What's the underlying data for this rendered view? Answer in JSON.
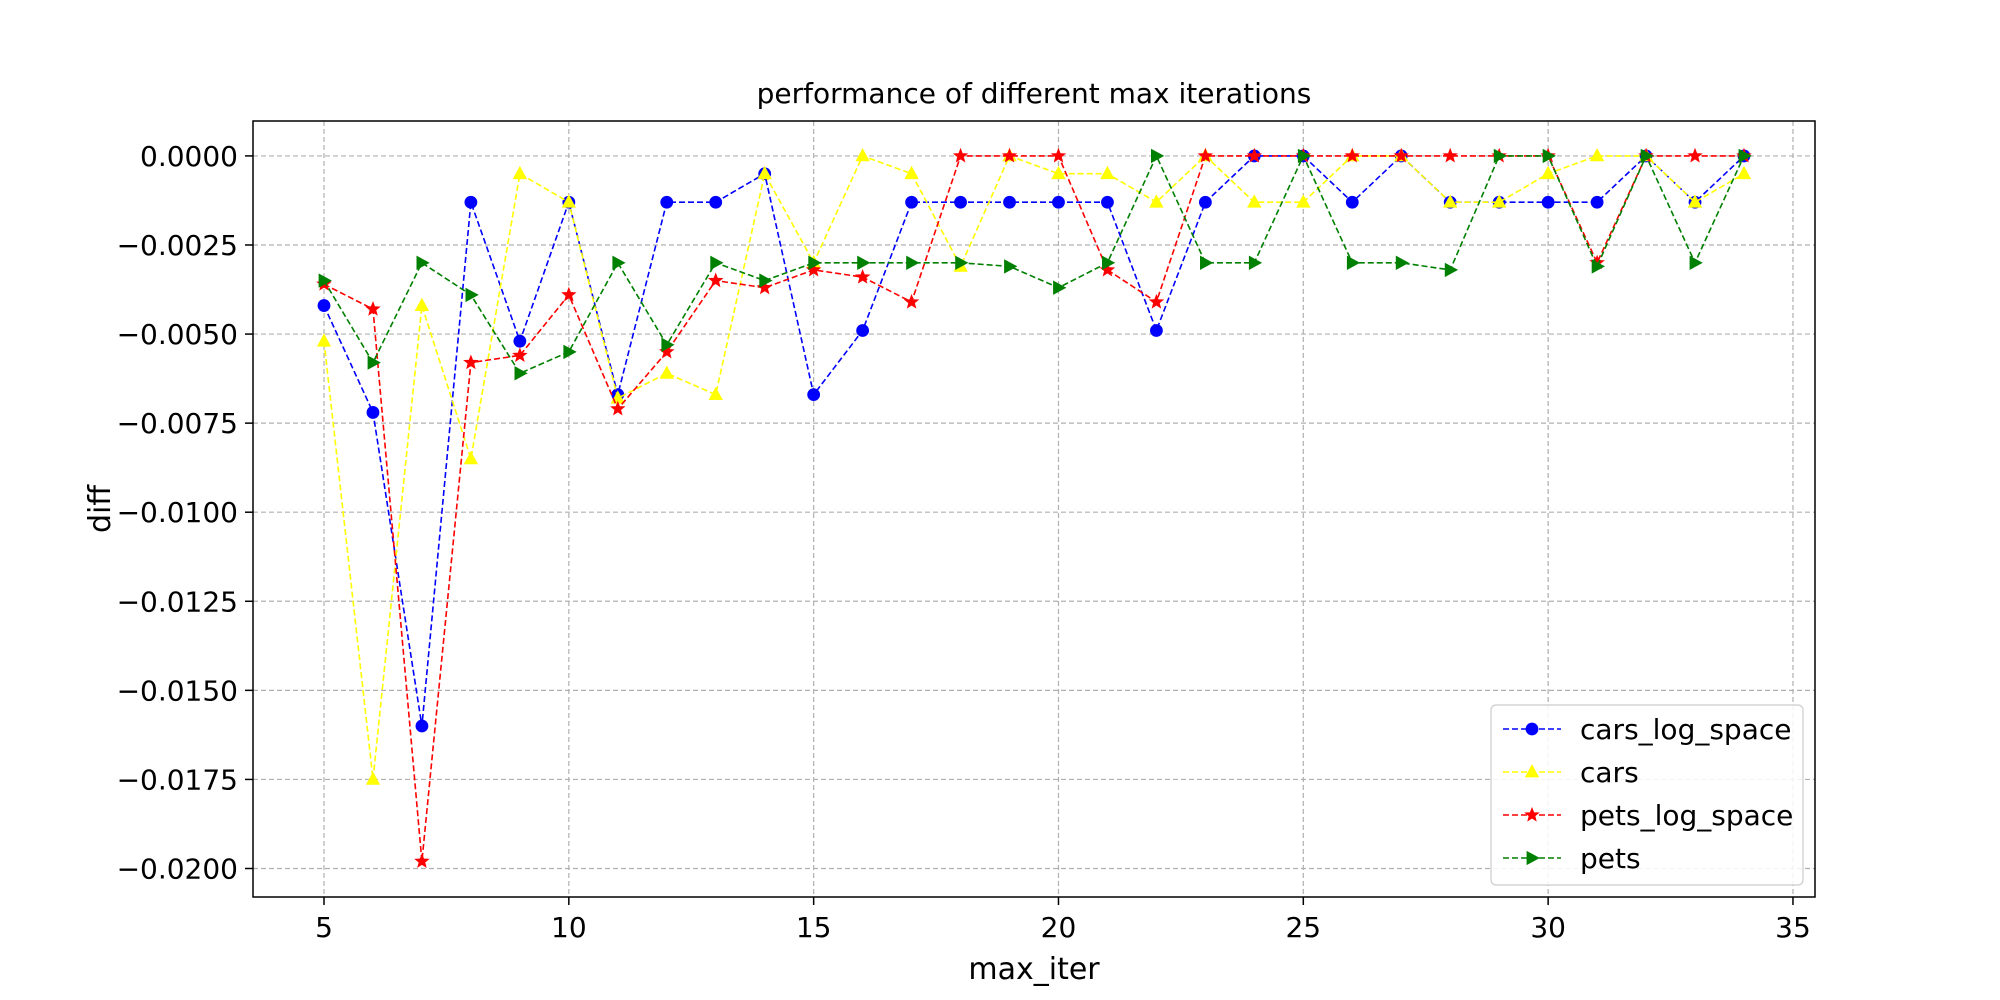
{
  "chart_data": {
    "type": "line",
    "title": "performance of different max iterations",
    "xlabel": "max_iter",
    "ylabel": "diff",
    "xlim": [
      3.55,
      35.45
    ],
    "ylim": [
      -0.0208,
      0.00098
    ],
    "x_ticks": [
      5,
      10,
      15,
      20,
      25,
      30,
      35
    ],
    "x_tick_labels": [
      "5",
      "10",
      "15",
      "20",
      "25",
      "30",
      "35"
    ],
    "y_ticks": [
      0.0,
      -0.0025,
      -0.005,
      -0.0075,
      -0.01,
      -0.0125,
      -0.015,
      -0.0175,
      -0.02
    ],
    "y_tick_labels": [
      "0.0000",
      "−0.0025",
      "−0.0050",
      "−0.0075",
      "−0.0100",
      "−0.0125",
      "−0.0150",
      "−0.0175",
      "−0.0200"
    ],
    "grid": true,
    "legend_position": "lower-right",
    "x": [
      5,
      6,
      7,
      8,
      9,
      10,
      11,
      12,
      13,
      14,
      15,
      16,
      17,
      18,
      19,
      20,
      21,
      22,
      23,
      24,
      25,
      26,
      27,
      28,
      29,
      30,
      31,
      32,
      33,
      34
    ],
    "series": [
      {
        "name": "cars_log_space",
        "color": "#0000ff",
        "marker": "circle",
        "values": [
          -0.0042,
          -0.0072,
          -0.016,
          -0.0013,
          -0.0052,
          -0.0013,
          -0.0067,
          -0.0013,
          -0.0013,
          -0.0005,
          -0.0067,
          -0.0049,
          -0.0013,
          -0.0013,
          -0.0013,
          -0.0013,
          -0.0013,
          -0.0049,
          -0.0013,
          0.0,
          0.0,
          -0.0013,
          0.0,
          -0.0013,
          -0.0013,
          -0.0013,
          -0.0013,
          0.0,
          -0.0013,
          0.0
        ]
      },
      {
        "name": "cars",
        "color": "#ffff00",
        "marker": "triangle-up",
        "values": [
          -0.0052,
          -0.0175,
          -0.0042,
          -0.0085,
          -0.0005,
          -0.0013,
          -0.0068,
          -0.0061,
          -0.0067,
          -0.0005,
          -0.003,
          0.0,
          -0.0005,
          -0.0031,
          0.0,
          -0.0005,
          -0.0005,
          -0.0013,
          0.0,
          -0.0013,
          -0.0013,
          0.0,
          0.0,
          -0.0013,
          -0.0013,
          -0.0005,
          0.0,
          0.0,
          -0.0013,
          -0.0005
        ]
      },
      {
        "name": "pets_log_space",
        "color": "#ff0000",
        "marker": "star",
        "values": [
          -0.0036,
          -0.0043,
          -0.0198,
          -0.0058,
          -0.0056,
          -0.0039,
          -0.0071,
          -0.0055,
          -0.0035,
          -0.0037,
          -0.0032,
          -0.0034,
          -0.0041,
          0.0,
          0.0,
          0.0,
          -0.0032,
          -0.0041,
          0.0,
          0.0,
          0.0,
          0.0,
          0.0,
          0.0,
          0.0,
          0.0,
          -0.003,
          0.0,
          0.0,
          0.0
        ]
      },
      {
        "name": "pets",
        "color": "#008000",
        "marker": "triangle-right",
        "values": [
          -0.0035,
          -0.0058,
          -0.003,
          -0.0039,
          -0.0061,
          -0.0055,
          -0.003,
          -0.0053,
          -0.003,
          -0.0035,
          -0.003,
          -0.003,
          -0.003,
          -0.003,
          -0.0031,
          -0.0037,
          -0.003,
          0.0,
          -0.003,
          -0.003,
          0.0,
          -0.003,
          -0.003,
          -0.0032,
          0.0,
          0.0,
          -0.0031,
          0.0,
          -0.003,
          0.0
        ]
      }
    ]
  }
}
